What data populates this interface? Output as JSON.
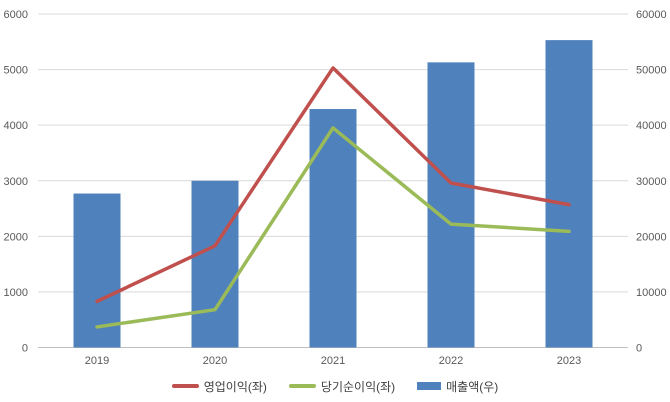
{
  "chart_data": {
    "type": "combo",
    "categories": [
      "2019",
      "2020",
      "2021",
      "2022",
      "2023"
    ],
    "series": [
      {
        "id": "operating-profit",
        "name": "영업이익(좌)",
        "type": "line",
        "axis": "left",
        "color": "#C0504D",
        "values": [
          830,
          1830,
          5030,
          2960,
          2570
        ]
      },
      {
        "id": "net-profit",
        "name": "당기순이익(좌)",
        "type": "line",
        "axis": "left",
        "color": "#9BBB59",
        "values": [
          370,
          680,
          3950,
          2220,
          2090
        ]
      },
      {
        "id": "revenue",
        "name": "매출액(우)",
        "type": "bar",
        "axis": "right",
        "color": "#4F81BD",
        "values": [
          27700,
          30000,
          42900,
          51300,
          55300
        ]
      }
    ],
    "left_axis": {
      "min": 0,
      "max": 6000,
      "step": 1000,
      "ticks": [
        "0",
        "1000",
        "2000",
        "3000",
        "4000",
        "5000",
        "6000"
      ]
    },
    "right_axis": {
      "min": 0,
      "max": 60000,
      "step": 10000,
      "ticks": [
        "0",
        "10000",
        "20000",
        "30000",
        "40000",
        "50000",
        "60000"
      ]
    },
    "grid": true,
    "legend_position": "bottom",
    "colors": {
      "grid": "#D9D9D9",
      "axis_line": "#BFBFBF",
      "axis_text": "#595959",
      "legend_text": "#404040",
      "background": "#FFFFFF"
    }
  }
}
